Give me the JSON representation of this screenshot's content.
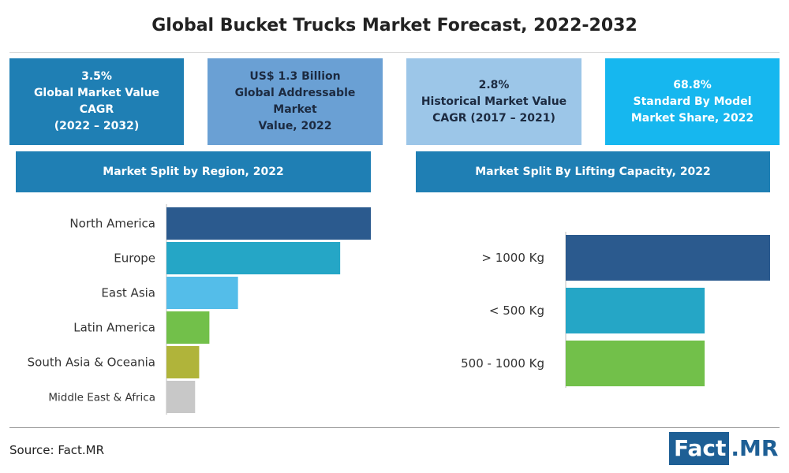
{
  "header": {
    "title": "Global Bucket Trucks Market Forecast, 2022-2032"
  },
  "stats": [
    {
      "lines": [
        "3.5%",
        "Global Market Value CAGR",
        "(2022 – 2032)"
      ]
    },
    {
      "lines": [
        "US$ 1.3 Billion",
        "Global Addressable Market",
        "Value, 2022"
      ]
    },
    {
      "lines": [
        "2.8%",
        "Historical Market Value",
        "CAGR (2017 – 2021)"
      ]
    },
    {
      "lines": [
        "68.8%",
        "Standard By Model",
        "Market Share, 2022"
      ]
    }
  ],
  "footer": {
    "source": "Source: Fact.MR",
    "logo_fact": "Fact",
    "logo_mr": ".MR"
  },
  "colors": {
    "header_blue": "#1f7fb4",
    "logo_blue": "#1e5f95"
  },
  "chart_data": [
    {
      "type": "bar",
      "orientation": "horizontal",
      "title": "Market Split by Region, 2022",
      "categories": [
        "North America",
        "Europe",
        "East Asia",
        "Latin America",
        "South Asia & Oceania",
        "Middle East & Africa"
      ],
      "values": [
        100,
        85,
        35,
        21,
        16,
        14
      ],
      "colors": [
        "#2b5a8e",
        "#25a6c6",
        "#54bde9",
        "#72c04a",
        "#b0b43a",
        "#c8c8c8"
      ],
      "xlim": [
        0,
        100
      ],
      "grid": false,
      "legend": "none"
    },
    {
      "type": "bar",
      "orientation": "horizontal",
      "title": "Market Split By Lifting Capacity, 2022",
      "categories": [
        "> 1000 Kg",
        "< 500 Kg",
        "500 - 1000 Kg"
      ],
      "values": [
        100,
        68,
        68
      ],
      "colors": [
        "#2b5a8e",
        "#25a6c6",
        "#72c04a"
      ],
      "xlim": [
        0,
        100
      ],
      "grid": false,
      "legend": "none"
    }
  ]
}
